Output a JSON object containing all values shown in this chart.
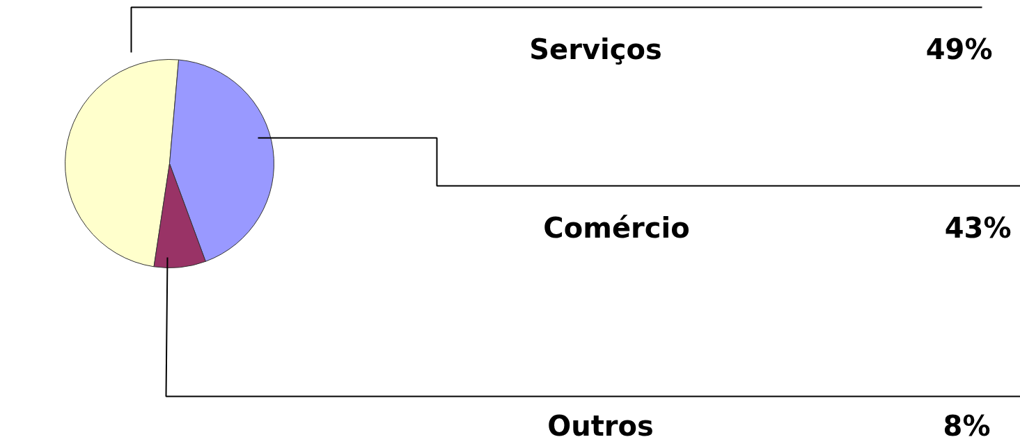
{
  "chart_data": {
    "type": "pie",
    "categories": [
      "Serviços",
      "Comércio",
      "Outros"
    ],
    "values": [
      49,
      43,
      8
    ],
    "colors": [
      "#ffffcc",
      "#9999ff",
      "#993366"
    ],
    "value_labels": [
      "49%",
      "43%",
      "8%"
    ]
  }
}
